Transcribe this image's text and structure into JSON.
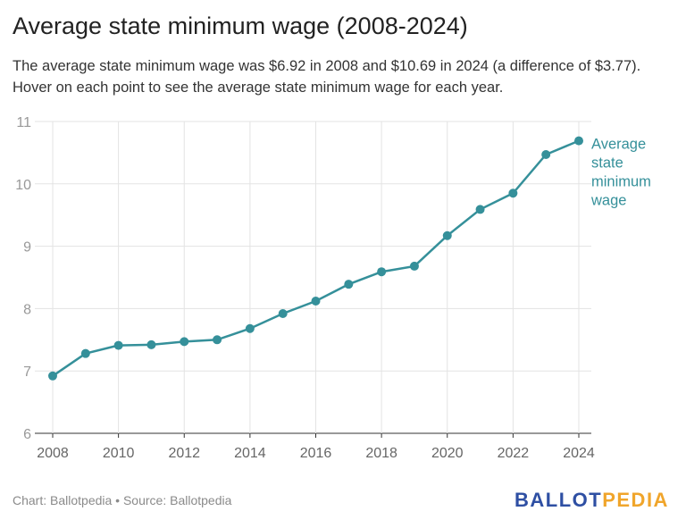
{
  "title": "Average state minimum wage (2008-2024)",
  "subtitle": "The average state minimum wage was $6.92 in 2008 and $10.69 in 2024 (a difference of $3.77). Hover on each point to see the average state minimum wage for each year.",
  "footer": "Chart: Ballotpedia • Source: Ballotpedia",
  "logo": {
    "part1": "BALLOT",
    "part2": "PEDIA"
  },
  "chart_data": {
    "type": "line",
    "title": "Average state minimum wage (2008-2024)",
    "xlabel": "",
    "ylabel": "",
    "x": [
      2008,
      2009,
      2010,
      2011,
      2012,
      2013,
      2014,
      2015,
      2016,
      2017,
      2018,
      2019,
      2020,
      2021,
      2022,
      2023,
      2024
    ],
    "series": [
      {
        "name": "Average state minimum wage",
        "values": [
          6.92,
          7.28,
          7.41,
          7.42,
          7.47,
          7.5,
          7.68,
          7.92,
          8.12,
          8.39,
          8.59,
          8.68,
          9.17,
          9.59,
          9.85,
          10.47,
          10.69
        ],
        "color": "#35909a"
      }
    ],
    "xlim": [
      2008,
      2024
    ],
    "ylim": [
      6,
      11
    ],
    "xticks": [
      "2008",
      "2010",
      "2012",
      "2014",
      "2016",
      "2018",
      "2020",
      "2022",
      "2024"
    ],
    "yticks": [
      "6",
      "7",
      "8",
      "9",
      "10",
      "11"
    ],
    "grid": true,
    "legend": "direct label at line end",
    "series_label_lines": [
      "Average",
      "state",
      "minimum",
      "wage"
    ]
  }
}
